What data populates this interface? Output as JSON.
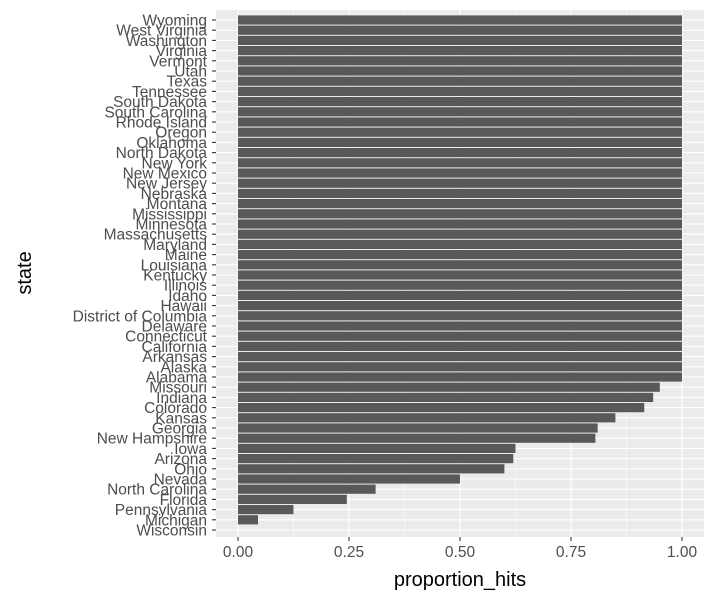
{
  "chart_data": {
    "type": "bar",
    "orientation": "horizontal",
    "xlabel": "proportion_hits",
    "ylabel": "state",
    "xlim": [
      0,
      1
    ],
    "xticks": [
      "0.00",
      "0.25",
      "0.50",
      "0.75",
      "1.00"
    ],
    "grid": true,
    "categories": [
      "Wyoming",
      "West Virginia",
      "Washington",
      "Virginia",
      "Vermont",
      "Utah",
      "Texas",
      "Tennessee",
      "South Dakota",
      "South Carolina",
      "Rhode Island",
      "Oregon",
      "Oklahoma",
      "North Dakota",
      "New York",
      "New Mexico",
      "New Jersey",
      "Nebraska",
      "Montana",
      "Mississippi",
      "Minnesota",
      "Massachusetts",
      "Maryland",
      "Maine",
      "Louisiana",
      "Kentucky",
      "Illinois",
      "Idaho",
      "Hawaii",
      "District of Columbia",
      "Delaware",
      "Connecticut",
      "California",
      "Arkansas",
      "Alaska",
      "Alabama",
      "Missouri",
      "Indiana",
      "Colorado",
      "Kansas",
      "Georgia",
      "New Hampshire",
      "Iowa",
      "Arizona",
      "Ohio",
      "Nevada",
      "North Carolina",
      "Florida",
      "Pennsylvania",
      "Michigan",
      "Wisconsin"
    ],
    "values": [
      1,
      1,
      1,
      1,
      1,
      1,
      1,
      1,
      1,
      1,
      1,
      1,
      1,
      1,
      1,
      1,
      1,
      1,
      1,
      1,
      1,
      1,
      1,
      1,
      1,
      1,
      1,
      1,
      1,
      1,
      1,
      1,
      1,
      1,
      1,
      1,
      0.95,
      0.935,
      0.915,
      0.85,
      0.81,
      0.805,
      0.625,
      0.62,
      0.6,
      0.5,
      0.31,
      0.245,
      0.125,
      0.045,
      0
    ],
    "colors": {
      "bar": "#595959",
      "panel": "#ebebeb",
      "grid": "#ffffff",
      "text": "#4d4d4d",
      "tick": "#333333"
    }
  }
}
